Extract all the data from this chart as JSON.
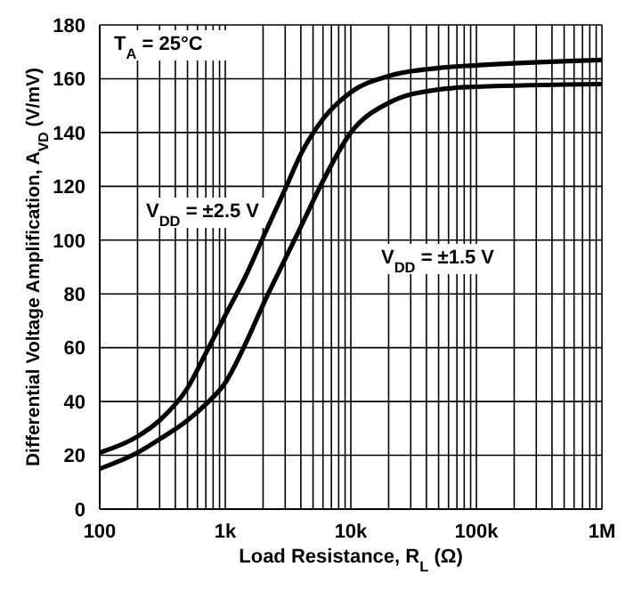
{
  "chart_data": {
    "type": "line",
    "xlabel": "Load Resistance, R$_{L}$  (Ω)",
    "ylabel": "Differential Voltage Amplification, A$_{VD}$ (V/mV)",
    "log": "x",
    "grid": true,
    "marker": "none",
    "line_style": "solid",
    "legend": false,
    "xlim": [
      100,
      1000000
    ],
    "ylim": [
      0,
      180
    ],
    "xticks": [
      100,
      {
        "value": 200,
        "label": null
      },
      {
        "value": 300,
        "label": null
      },
      {
        "value": 400,
        "label": null
      },
      {
        "value": 500,
        "label": null
      },
      {
        "value": 600,
        "label": null
      },
      {
        "value": 700,
        "label": null
      },
      {
        "value": 800,
        "label": null
      },
      {
        "value": 900,
        "label": null
      },
      {
        "value": 1000,
        "label": "1k"
      },
      {
        "value": 2000,
        "label": null
      },
      {
        "value": 3000,
        "label": null
      },
      {
        "value": 4000,
        "label": null
      },
      {
        "value": 5000,
        "label": null
      },
      {
        "value": 6000,
        "label": null
      },
      {
        "value": 7000,
        "label": null
      },
      {
        "value": 8000,
        "label": null
      },
      {
        "value": 9000,
        "label": null
      },
      {
        "value": 10000,
        "label": "10k"
      },
      {
        "value": 20000,
        "label": null
      },
      {
        "value": 30000,
        "label": null
      },
      {
        "value": 40000,
        "label": null
      },
      {
        "value": 50000,
        "label": null
      },
      {
        "value": 60000,
        "label": null
      },
      {
        "value": 70000,
        "label": null
      },
      {
        "value": 80000,
        "label": null
      },
      {
        "value": 90000,
        "label": null
      },
      {
        "value": 100000,
        "label": "100k"
      },
      {
        "value": 200000,
        "label": null
      },
      {
        "value": 300000,
        "label": null
      },
      {
        "value": 400000,
        "label": null
      },
      {
        "value": 500000,
        "label": null
      },
      {
        "value": 600000,
        "label": null
      },
      {
        "value": 700000,
        "label": null
      },
      {
        "value": 800000,
        "label": null
      },
      {
        "value": 900000,
        "label": null
      },
      {
        "value": 1000000,
        "label": "1M"
      }
    ],
    "yticks": [
      0,
      20,
      40,
      60,
      80,
      100,
      120,
      140,
      160,
      180
    ],
    "series": [
      {
        "color": "#000000",
        "x": [
          100,
          200,
          300,
          500,
          700,
          1000,
          1500,
          2000,
          3000,
          4000,
          6000,
          10000,
          20000,
          50000,
          100000,
          1000000
        ],
        "values": [
          21,
          27,
          33,
          45,
          58,
          72,
          88,
          101,
          119,
          132,
          145,
          155,
          161,
          164,
          165,
          167
        ]
      },
      {
        "color": "#000000",
        "x": [
          100,
          200,
          300,
          500,
          700,
          1000,
          1500,
          2000,
          3000,
          4000,
          6000,
          10000,
          20000,
          50000,
          100000,
          1000000
        ],
        "values": [
          15,
          21,
          26,
          33,
          39,
          47,
          63,
          76,
          93,
          105,
          122,
          140,
          151,
          156,
          157,
          158
        ]
      }
    ],
    "annotations": [
      "T$_{A}$ = 25°C",
      "V$_{DD}$ = ±2.5 V",
      "V$_{DD}$ = ±1.5 V"
    ]
  }
}
